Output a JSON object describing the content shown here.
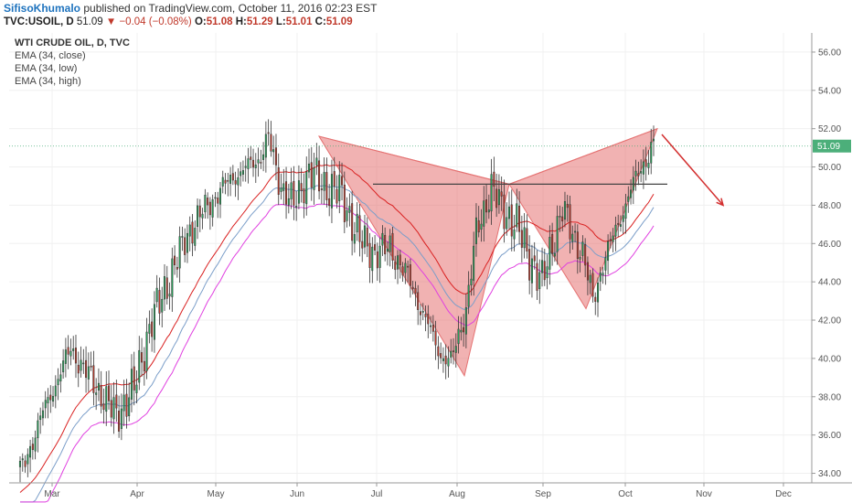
{
  "header": {
    "author": "SifisoKhumalo",
    "published": "published on TradingView.com, October 11, 2016 02:23 EST",
    "symbol": "TVC:USOIL, D",
    "last": "51.09",
    "change_icon": "down-triangle-icon",
    "change": "−0.04 (−0.08%)",
    "o_label": "O:",
    "o": "51.08",
    "h_label": "H:",
    "h": "51.29",
    "l_label": "L:",
    "l": "51.01",
    "c_label": "C:",
    "c": "51.09"
  },
  "legend": {
    "title": "WTI CRUDE OIL, D, TVC",
    "items": [
      "EMA (34, close)",
      "EMA (34, low)",
      "EMA (34, high)"
    ]
  },
  "colors": {
    "up": "#26a65b",
    "down": "#c0392b",
    "ema_close": "#7b9ec9",
    "ema_low": "#e040e0",
    "ema_high": "#d92020",
    "pattern_fill": "#e57373",
    "arrow": "#d32f2f",
    "price_tag": "#4caf7a"
  },
  "chart_data": {
    "type": "candlestick",
    "price_axis": {
      "ticks": [
        "56.00",
        "54.00",
        "52.00",
        "50.00",
        "48.00",
        "46.00",
        "44.00",
        "42.00",
        "40.00",
        "38.00",
        "36.00",
        "34.00"
      ],
      "range": [
        33.5,
        57
      ]
    },
    "time_axis": {
      "labels": [
        "Mar",
        "Apr",
        "May",
        "Jun",
        "Jul",
        "Aug",
        "Sep",
        "Oct",
        "Nov",
        "Dec"
      ]
    },
    "last_price_tag": "51.09",
    "series": [
      {
        "name": "EMA (34, close)"
      },
      {
        "name": "EMA (34, low)"
      },
      {
        "name": "EMA (34, high)"
      }
    ],
    "annotations": {
      "pattern": "bat / butterfly harmonic pattern (X-A-B-C-D)",
      "resistance_level": 49.1,
      "projection": "down arrow"
    }
  }
}
